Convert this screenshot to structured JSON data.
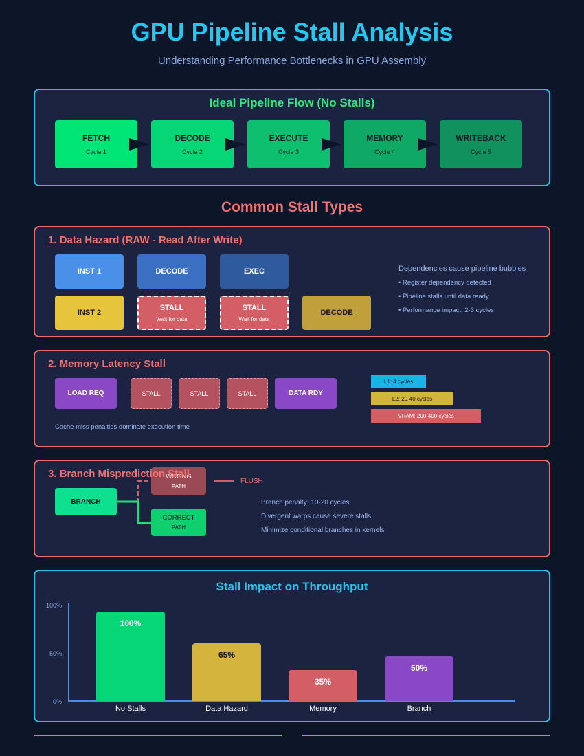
{
  "header": {
    "title": "GPU Pipeline Stall Analysis",
    "subtitle": "Understanding Performance Bottlenecks in GPU Assembly"
  },
  "ideal": {
    "title": "Ideal Pipeline Flow (No Stalls)",
    "stages": [
      {
        "name": "FETCH",
        "cycle": "Cycle 1",
        "color": "#00e676"
      },
      {
        "name": "DECODE",
        "cycle": "Cycle 2",
        "color": "#06d676"
      },
      {
        "name": "EXECUTE",
        "cycle": "Cycle 3",
        "color": "#0dbf6e"
      },
      {
        "name": "MEMORY",
        "cycle": "Cycle 4",
        "color": "#0fa865"
      },
      {
        "name": "WRITEBACK",
        "cycle": "Cycle 5",
        "color": "#11915e"
      }
    ]
  },
  "stall_types_heading": "Common Stall Types",
  "data_hazard": {
    "title": "1. Data Hazard (RAW - Read After Write)",
    "row1": [
      "INST 1",
      "DECODE",
      "EXEC"
    ],
    "row2_inst": "INST 2",
    "stall_label": "STALL",
    "stall_sub": "Wait for data",
    "row2_decode": "DECODE",
    "notes_title": "Dependencies cause pipeline bubbles",
    "notes": [
      "• Register dependency detected",
      "• Pipeline stalls until data ready",
      "• Performance impact: 2-3 cycles"
    ]
  },
  "memory": {
    "title": "2. Memory Latency Stall",
    "load": "LOAD REQ",
    "stall": "STALL",
    "ready": "DATA RDY",
    "caption": "Cache miss penalties dominate execution time",
    "latencies": [
      {
        "label": "L1: 4 cycles",
        "color": "#1ab3e6"
      },
      {
        "label": "L2: 20-40 cycles",
        "color": "#d4b43c"
      },
      {
        "label": "VRAM: 200-400 cycles",
        "color": "#d45e66"
      }
    ]
  },
  "branch": {
    "title": "3. Branch Misprediction Stall",
    "branch": "BRANCH",
    "wrong": "WRONG",
    "wrong_sub": "PATH",
    "correct": "CORRECT",
    "correct_sub": "PATH",
    "flush": "FLUSH",
    "notes": [
      "Branch penalty: 10-20 cycles",
      "Divergent warps cause severe stalls",
      "Minimize conditional branches in kernels"
    ]
  },
  "throughput": {
    "title": "Stall Impact on Throughput"
  },
  "chart_data": {
    "type": "bar",
    "title": "Stall Impact on Throughput",
    "categories": [
      "No Stalls",
      "Data Hazard",
      "Memory",
      "Branch"
    ],
    "values": [
      100,
      65,
      35,
      50
    ],
    "value_labels": [
      "100%",
      "65%",
      "35%",
      "50%"
    ],
    "colors": [
      "#06d676",
      "#d4b43c",
      "#d45e66",
      "#8b48c6"
    ],
    "label_colors": [
      "#ffffff",
      "#1b1b1b",
      "#ffffff",
      "#ffffff"
    ],
    "yticks": [
      "0%",
      "50%",
      "100%"
    ],
    "ylim": [
      0,
      100
    ]
  }
}
